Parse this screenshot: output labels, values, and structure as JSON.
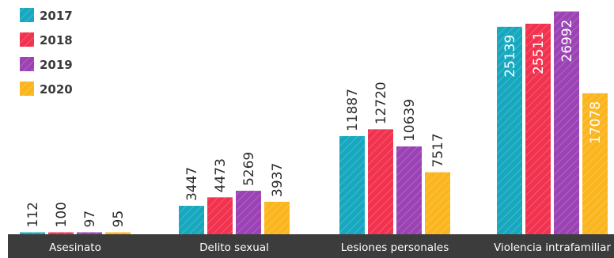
{
  "chart_data": {
    "type": "bar",
    "title": "",
    "xlabel": "",
    "ylabel": "",
    "ylim": [
      0,
      28000
    ],
    "grid": false,
    "legend_position": "top-left",
    "categories": [
      "Asesinato",
      "Delito sexual",
      "Lesiones personales",
      "Violencia intrafamiliar"
    ],
    "series": [
      {
        "name": "2017",
        "values": [
          112,
          3447,
          11887,
          25139
        ]
      },
      {
        "name": "2018",
        "values": [
          100,
          4473,
          12720,
          25511
        ]
      },
      {
        "name": "2019",
        "values": [
          97,
          5269,
          10639,
          26992
        ]
      },
      {
        "name": "2020",
        "values": [
          95,
          3937,
          7517,
          17078
        ]
      }
    ],
    "colors": [
      "#17a8bf",
      "#f2334f",
      "#9b43b4",
      "#fbb61f"
    ],
    "hatched": true
  }
}
